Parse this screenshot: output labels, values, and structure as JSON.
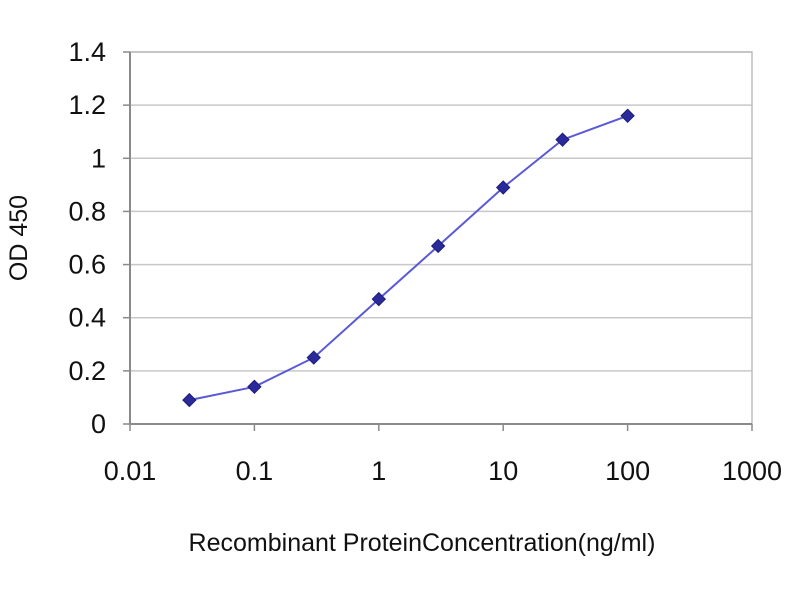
{
  "chart_data": {
    "type": "scatter",
    "title": "",
    "xlabel": "Recombinant ProteinConcentration(ng/ml)",
    "ylabel": "OD 450",
    "x_scale": "log",
    "xlim": [
      0.01,
      1000
    ],
    "ylim": [
      0,
      1.4
    ],
    "x_ticks": [
      0.01,
      0.1,
      1,
      10,
      100,
      1000
    ],
    "x_tick_labels": [
      "0.01",
      "0.1",
      "1",
      "10",
      "100",
      "1000"
    ],
    "y_ticks": [
      0,
      0.2,
      0.4,
      0.6,
      0.8,
      1,
      1.2,
      1.4
    ],
    "y_tick_labels": [
      "0",
      "0.2",
      "0.4",
      "0.6",
      "0.8",
      "1",
      "1.2",
      "1.4"
    ],
    "grid": "horizontal",
    "series": [
      {
        "color": "#2a2a9a",
        "line_color": "#5a5ad6",
        "x": [
          0.03,
          0.1,
          0.3,
          1,
          3,
          10,
          30,
          100
        ],
        "y": [
          0.09,
          0.14,
          0.25,
          0.47,
          0.67,
          0.89,
          1.07,
          1.16
        ]
      }
    ]
  }
}
